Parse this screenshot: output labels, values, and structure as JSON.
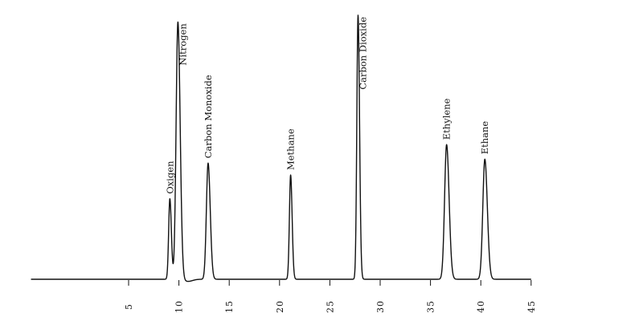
{
  "chart_data": {
    "type": "line",
    "title": "",
    "xlabel": "",
    "ylabel": "",
    "xlim": [
      0,
      45
    ],
    "ylim": [
      0,
      100
    ],
    "grid": false,
    "legend": "none",
    "x_ticks": [
      5,
      10,
      15,
      20,
      25,
      30,
      35,
      40,
      45
    ],
    "x_tick_labels": [
      "5",
      "10",
      "15",
      "20",
      "25",
      "30",
      "35",
      "40",
      "45"
    ],
    "peaks": [
      {
        "name": "Oxigen",
        "retention_time": 9.1,
        "height": 30.5,
        "width": 0.12
      },
      {
        "name": "Nitrogen",
        "retention_time": 9.9,
        "height": 97.5,
        "width": 0.18
      },
      {
        "name": "Carbon Monoxide",
        "retention_time": 12.9,
        "height": 44,
        "width": 0.17
      },
      {
        "name": "Methane",
        "retention_time": 21.1,
        "height": 39.5,
        "width": 0.12
      },
      {
        "name": "Carbon Dioxide",
        "retention_time": 27.8,
        "height": 100,
        "width": 0.12
      },
      {
        "name": "Ethylene",
        "retention_time": 36.6,
        "height": 51,
        "width": 0.2
      },
      {
        "name": "Ethane",
        "retention_time": 40.4,
        "height": 45.5,
        "width": 0.2
      }
    ]
  },
  "colors": {
    "trace": "#111111",
    "background": "#ffffff"
  }
}
